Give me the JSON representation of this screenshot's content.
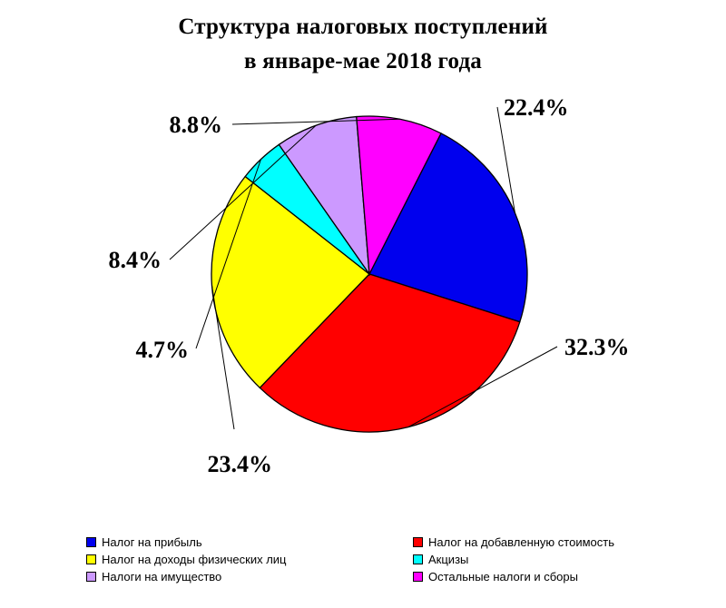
{
  "chart_data": {
    "type": "pie",
    "title_line1": "Структура налоговых поступлений",
    "title_line2": "в  январе-мае 2018 года",
    "slices": [
      {
        "label": "Налог  на прибыль",
        "value": 22.4,
        "value_text": "22.4%",
        "color": "#0000ee"
      },
      {
        "label": "Налог на добавленную стоимость",
        "value": 32.3,
        "value_text": "32.3%",
        "color": "#ff0000"
      },
      {
        "label": "Налог на доходы  физических лиц",
        "value": 23.4,
        "value_text": "23.4%",
        "color": "#ffff00"
      },
      {
        "label": "Акцизы",
        "value": 4.7,
        "value_text": "4.7%",
        "color": "#00ffff"
      },
      {
        "label": "Налоги на имущество",
        "value": 8.4,
        "value_text": "8.4%",
        "color": "#cc99ff"
      },
      {
        "label": "Остальные налоги и сборы",
        "value": 8.8,
        "value_text": "8.8%",
        "color": "#ff00ff"
      }
    ],
    "legend_placement": "bottom"
  }
}
